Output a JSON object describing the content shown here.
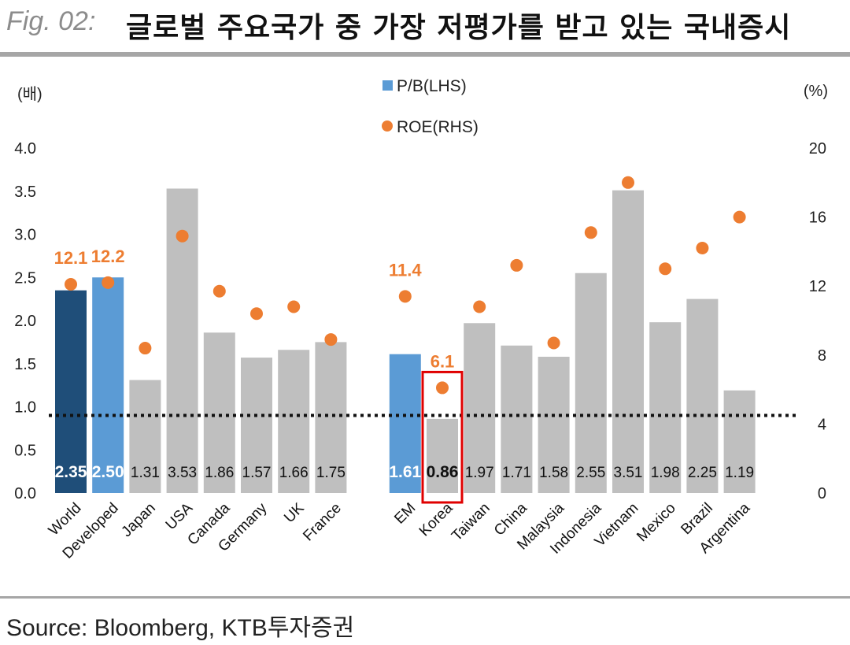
{
  "header": {
    "fig_label": "Fig. 02:",
    "title": "글로벌 주요국가 중 가장 저평가를 받고 있는 국내증시"
  },
  "footer": {
    "source": "Source: Bloomberg, KTB투자증권"
  },
  "chart_data": {
    "type": "bar",
    "left_axis_unit": "(배)",
    "right_axis_unit": "(%)",
    "left_ticks": [
      "0.0",
      "0.5",
      "1.0",
      "1.5",
      "2.0",
      "2.5",
      "3.0",
      "3.5",
      "4.0"
    ],
    "right_ticks": [
      "0",
      "4",
      "8",
      "12",
      "16",
      "20"
    ],
    "ylim_left": [
      0,
      4
    ],
    "ylim_right": [
      0,
      20
    ],
    "reference_line_value": 0.9,
    "legend": {
      "bar": "P/B(LHS)",
      "dot": "ROE(RHS)",
      "position": "top-center"
    },
    "categories": [
      "World",
      "Developed",
      "Japan",
      "USA",
      "Canada",
      "Germany",
      "UK",
      "France",
      "EM",
      "Korea",
      "Taiwan",
      "China",
      "Malaysia",
      "Indonesia",
      "Vietnam",
      "Mexico",
      "Brazil",
      "Argentina"
    ],
    "series": [
      {
        "name": "P/B(LHS)",
        "axis": "left",
        "values": [
          2.35,
          2.5,
          1.31,
          3.53,
          1.86,
          1.57,
          1.66,
          1.75,
          1.61,
          0.86,
          1.97,
          1.71,
          1.58,
          2.55,
          3.51,
          1.98,
          2.25,
          1.19
        ],
        "labels": [
          "2.35",
          "2.50",
          "1.31",
          "3.53",
          "1.86",
          "1.57",
          "1.66",
          "1.75",
          "1.61",
          "0.86",
          "1.97",
          "1.71",
          "1.58",
          "2.55",
          "3.51",
          "1.98",
          "2.25",
          "1.19"
        ]
      },
      {
        "name": "ROE(RHS)",
        "axis": "right",
        "values": [
          12.1,
          12.2,
          8.4,
          14.9,
          11.7,
          10.4,
          10.8,
          8.9,
          11.4,
          6.1,
          10.8,
          13.2,
          8.7,
          15.1,
          18.0,
          13.0,
          14.2,
          16.0
        ]
      }
    ],
    "roe_callouts": [
      {
        "category": "World",
        "text": "12.1"
      },
      {
        "category": "Developed",
        "text": "12.2"
      },
      {
        "category": "EM",
        "text": "11.4"
      },
      {
        "category": "Korea",
        "text": "6.1"
      }
    ],
    "highlight_category": "Korea",
    "colors": {
      "world": "#1f4e79",
      "developed": "#5b9bd5",
      "em": "#5b9bd5",
      "other": "#bfbfbf",
      "roe": "#ed7d31",
      "highlight": "#e00000"
    }
  }
}
